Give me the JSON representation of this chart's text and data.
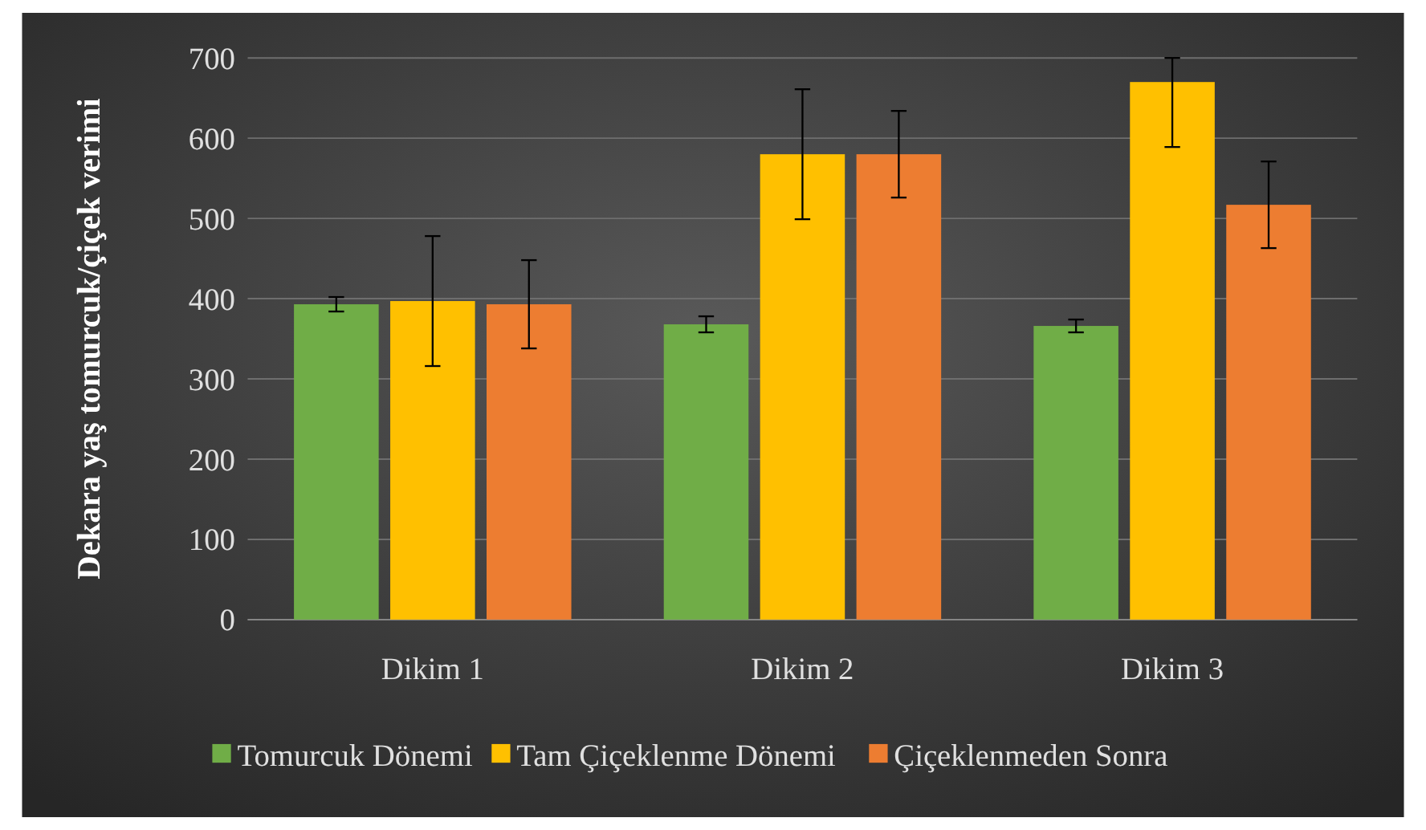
{
  "chart_data": {
    "type": "bar",
    "ylabel": "Dekara yaş tomurcuk/çiçek verimi",
    "categories": [
      "Dikim 1",
      "Dikim 2",
      "Dikim 3"
    ],
    "series": [
      {
        "name": "Tomurcuk Dönemi",
        "color": "#70ad47",
        "values": [
          393,
          368,
          366
        ],
        "errors": [
          9,
          10,
          8
        ]
      },
      {
        "name": "Tam Çiçeklenme Dönemi",
        "color": "#ffc000",
        "values": [
          397,
          580,
          670
        ],
        "errors": [
          81,
          81,
          [
            589,
            700
          ]
        ]
      },
      {
        "name": "Çiçeklenmeden Sonra",
        "color": "#ed7d31",
        "values": [
          393,
          580,
          517
        ],
        "errors": [
          55,
          54,
          54
        ]
      }
    ],
    "ylim": [
      0,
      700
    ],
    "yticks": [
      0,
      100,
      200,
      300,
      400,
      500,
      600,
      700
    ],
    "grid": "y",
    "legend": "bottom"
  }
}
